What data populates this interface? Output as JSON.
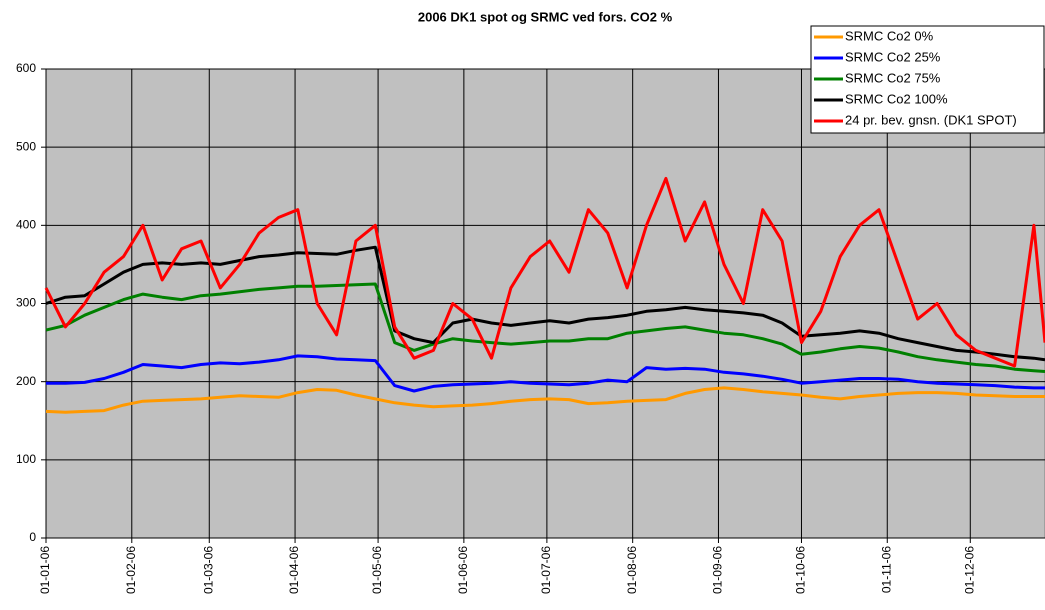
{
  "chart_data": {
    "type": "line",
    "title": "2006 DK1 spot og SRMC ved fors. CO2 %",
    "x": [
      "01-01-06",
      "08-01-06",
      "15-01-06",
      "22-01-06",
      "29-01-06",
      "05-02-06",
      "12-02-06",
      "19-02-06",
      "26-02-06",
      "05-03-06",
      "12-03-06",
      "19-03-06",
      "26-03-06",
      "02-04-06",
      "09-04-06",
      "16-04-06",
      "23-04-06",
      "30-04-06",
      "07-05-06",
      "14-05-06",
      "21-05-06",
      "28-05-06",
      "04-06-06",
      "11-06-06",
      "18-06-06",
      "25-06-06",
      "02-07-06",
      "09-07-06",
      "16-07-06",
      "23-07-06",
      "30-07-06",
      "06-08-06",
      "13-08-06",
      "20-08-06",
      "27-08-06",
      "03-09-06",
      "10-09-06",
      "17-09-06",
      "24-09-06",
      "01-10-06",
      "08-10-06",
      "15-10-06",
      "22-10-06",
      "29-10-06",
      "05-11-06",
      "12-11-06",
      "19-11-06",
      "26-11-06",
      "03-12-06",
      "10-12-06",
      "17-12-06",
      "24-12-06",
      "28-12-06"
    ],
    "series": [
      {
        "name": "SRMC Co2 0%",
        "color": "#ff9900",
        "values": [
          162,
          161,
          162,
          163,
          170,
          175,
          176,
          177,
          178,
          180,
          182,
          181,
          180,
          186,
          190,
          189,
          183,
          178,
          173,
          170,
          168,
          169,
          170,
          172,
          175,
          177,
          178,
          177,
          172,
          173,
          175,
          176,
          177,
          185,
          190,
          192,
          190,
          187,
          185,
          183,
          180,
          178,
          181,
          183,
          185,
          186,
          186,
          185,
          183,
          182,
          181,
          181,
          181
        ]
      },
      {
        "name": "SRMC Co2 25%",
        "color": "#0000ff",
        "values": [
          198,
          198,
          199,
          204,
          212,
          222,
          220,
          218,
          222,
          224,
          223,
          225,
          228,
          233,
          232,
          229,
          228,
          227,
          195,
          188,
          194,
          196,
          197,
          198,
          200,
          198,
          197,
          196,
          198,
          202,
          200,
          218,
          216,
          217,
          216,
          212,
          210,
          207,
          203,
          198,
          200,
          202,
          204,
          204,
          203,
          200,
          198,
          197,
          196,
          195,
          193,
          192,
          192
        ]
      },
      {
        "name": "SRMC Co2 75%",
        "color": "#008000",
        "values": [
          266,
          272,
          285,
          295,
          305,
          312,
          308,
          305,
          310,
          312,
          315,
          318,
          320,
          322,
          322,
          323,
          324,
          325,
          250,
          240,
          248,
          255,
          252,
          250,
          248,
          250,
          252,
          252,
          255,
          255,
          262,
          265,
          268,
          270,
          266,
          262,
          260,
          255,
          248,
          235,
          238,
          242,
          245,
          243,
          238,
          232,
          228,
          225,
          222,
          220,
          216,
          214,
          213
        ]
      },
      {
        "name": "SRMC Co2 100%",
        "color": "#000000",
        "values": [
          300,
          308,
          310,
          325,
          340,
          350,
          352,
          350,
          352,
          350,
          355,
          360,
          362,
          365,
          364,
          363,
          368,
          372,
          265,
          255,
          250,
          275,
          280,
          275,
          272,
          275,
          278,
          275,
          280,
          282,
          285,
          290,
          292,
          295,
          292,
          290,
          288,
          285,
          275,
          258,
          260,
          262,
          265,
          262,
          255,
          250,
          245,
          240,
          238,
          235,
          232,
          230,
          228
        ]
      },
      {
        "name": "24 pr. bev. gnsn. (DK1 SPOT)",
        "color": "#ff0000",
        "values": [
          320,
          270,
          300,
          340,
          360,
          400,
          330,
          370,
          380,
          320,
          350,
          390,
          410,
          420,
          300,
          260,
          380,
          400,
          270,
          230,
          240,
          300,
          280,
          230,
          320,
          360,
          380,
          340,
          420,
          390,
          320,
          400,
          460,
          380,
          430,
          350,
          300,
          420,
          380,
          250,
          290,
          360,
          400,
          420,
          350,
          280,
          300,
          260,
          240,
          230,
          220,
          400,
          250
        ]
      }
    ],
    "xlim": [
      "01-01-06",
      "28-12-06"
    ],
    "xticks": [
      "01-01-06",
      "01-02-06",
      "01-03-06",
      "01-04-06",
      "01-05-06",
      "01-06-06",
      "01-07-06",
      "01-08-06",
      "01-09-06",
      "01-10-06",
      "01-11-06",
      "01-12-06"
    ],
    "ylim": [
      0,
      600
    ],
    "yticks": [
      0,
      100,
      200,
      300,
      400,
      500,
      600
    ],
    "grid": true,
    "legend": "top-right",
    "background": "#c0c0c0"
  }
}
